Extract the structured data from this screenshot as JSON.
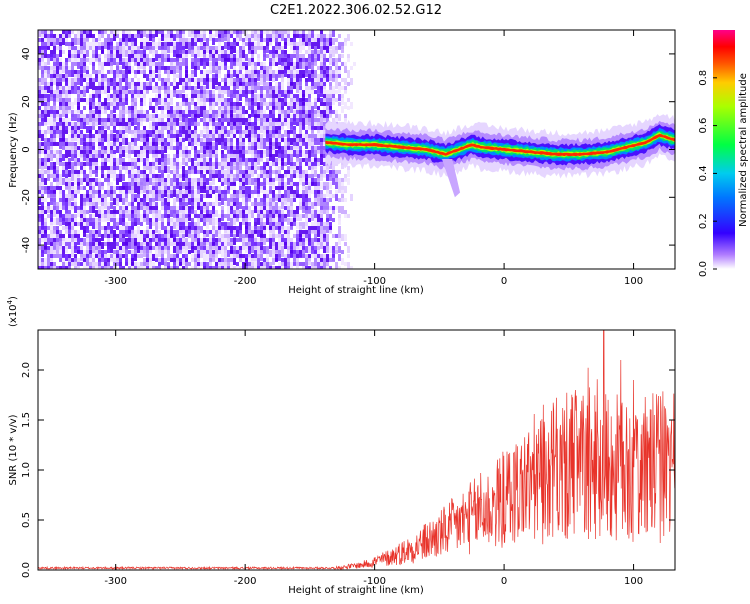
{
  "title": "C2E1.2022.306.02.52.G12",
  "chart_data": [
    {
      "type": "heatmap",
      "xlabel": "Height of straight line (km)",
      "ylabel": "Frequency (Hz)",
      "xlim": [
        -360,
        132
      ],
      "ylim": [
        -50,
        50
      ],
      "xticks": [
        -300,
        -200,
        -100,
        0,
        100
      ],
      "yticks": [
        -40,
        -20,
        0,
        20,
        40
      ],
      "colorbar": {
        "label": "Normalized spectral amplitude",
        "range": [
          0,
          1
        ],
        "ticks": [
          "0.0",
          "0.2",
          "0.4",
          "0.6",
          "0.8"
        ]
      },
      "ridge": {
        "noise_region_x": [
          -360,
          -138
        ],
        "points": [
          {
            "x": -138,
            "y": 3
          },
          {
            "x": -120,
            "y": 2
          },
          {
            "x": -100,
            "y": 2
          },
          {
            "x": -80,
            "y": 1
          },
          {
            "x": -60,
            "y": 0
          },
          {
            "x": -45,
            "y": -2
          },
          {
            "x": -35,
            "y": 0
          },
          {
            "x": -25,
            "y": 2
          },
          {
            "x": -18,
            "y": 1
          },
          {
            "x": 0,
            "y": 0
          },
          {
            "x": 20,
            "y": -1
          },
          {
            "x": 40,
            "y": -2
          },
          {
            "x": 60,
            "y": -2
          },
          {
            "x": 80,
            "y": -1
          },
          {
            "x": 95,
            "y": 1
          },
          {
            "x": 110,
            "y": 3
          },
          {
            "x": 120,
            "y": 6
          },
          {
            "x": 132,
            "y": 4
          }
        ]
      }
    },
    {
      "type": "line",
      "xlabel": "Height of straight line (km)",
      "ylabel": "SNR (10 * v/v)",
      "exponent_label": "(x10",
      "exponent": "4",
      "exponent_close": ")",
      "xlim": [
        -360,
        132
      ],
      "ylim": [
        0,
        2.4
      ],
      "xticks": [
        -300,
        -200,
        -100,
        0,
        100
      ],
      "yticks": [
        "0.0",
        "0.5",
        "1.0",
        "1.5",
        "2.0"
      ],
      "color": "#e8332a",
      "envelope": [
        {
          "x": -360,
          "y": 0.02
        },
        {
          "x": -200,
          "y": 0.02
        },
        {
          "x": -130,
          "y": 0.02
        },
        {
          "x": -110,
          "y": 0.05
        },
        {
          "x": -90,
          "y": 0.12
        },
        {
          "x": -70,
          "y": 0.22
        },
        {
          "x": -50,
          "y": 0.35
        },
        {
          "x": -30,
          "y": 0.5
        },
        {
          "x": -10,
          "y": 0.62
        },
        {
          "x": 10,
          "y": 0.8
        },
        {
          "x": 30,
          "y": 0.95
        },
        {
          "x": 50,
          "y": 1.02
        },
        {
          "x": 70,
          "y": 1.05
        },
        {
          "x": 90,
          "y": 1.0
        },
        {
          "x": 110,
          "y": 1.0
        },
        {
          "x": 132,
          "y": 1.05
        }
      ],
      "peaks": [
        {
          "x": -18,
          "y": 0.97
        },
        {
          "x": -2,
          "y": 0.35
        },
        {
          "x": 40,
          "y": 1.4
        },
        {
          "x": 55,
          "y": 1.8
        },
        {
          "x": 77,
          "y": 2.4
        },
        {
          "x": 90,
          "y": 2.1
        },
        {
          "x": 100,
          "y": 1.9
        },
        {
          "x": 120,
          "y": 1.3
        }
      ]
    }
  ]
}
